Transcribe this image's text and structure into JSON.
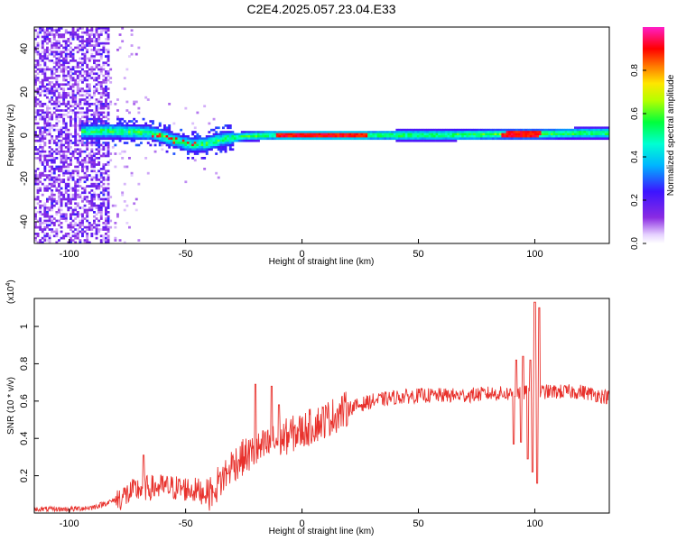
{
  "title": "C2E4.2025.057.23.04.E33",
  "colors": {
    "snr_line": "#e8312c",
    "track_core": "#ff0000",
    "scatter": "#8a2be2"
  },
  "chart_data": [
    {
      "type": "heatmap",
      "title": "C2E4.2025.057.23.04.E33",
      "xlabel": "Height of straight line (km)",
      "ylabel": "Frequency (Hz)",
      "xlim": [
        -115,
        132
      ],
      "ylim": [
        -50,
        50
      ],
      "x_ticks": [
        -100,
        -50,
        0,
        50,
        100
      ],
      "y_ticks": [
        -40,
        -20,
        0,
        20,
        40
      ],
      "colorbar": {
        "label": "Normalized spectral amplitude",
        "range": [
          0,
          1
        ],
        "ticks": [
          "0.0",
          "0.2",
          "0.4",
          "0.6",
          "0.8"
        ],
        "colormap": "rainbow (lavender-purple-blue-cyan-green-yellow-red-magenta)"
      },
      "features": {
        "tone_frequency_hz": 1,
        "tone_extent_km": [
          -95,
          132
        ],
        "tone_halfwidth_hz_near_0km": 2,
        "strong_segment_km": [
          -12,
          28
        ],
        "broadband_noise_region_km": [
          -115,
          -83
        ]
      },
      "track_center_hz": [
        [
          -95,
          2
        ],
        [
          -85,
          2.5
        ],
        [
          -75,
          2
        ],
        [
          -65,
          1.5
        ],
        [
          -60,
          0
        ],
        [
          -55,
          -2
        ],
        [
          -48,
          -4
        ],
        [
          -42,
          -3.5
        ],
        [
          -35,
          -1.5
        ],
        [
          -25,
          0
        ],
        [
          -15,
          0.5
        ],
        [
          0,
          0.5
        ],
        [
          30,
          0.5
        ],
        [
          60,
          0.5
        ],
        [
          90,
          1
        ],
        [
          100,
          1
        ],
        [
          120,
          1.5
        ],
        [
          132,
          1.5
        ]
      ]
    },
    {
      "type": "line",
      "xlabel": "Height of straight line (km)",
      "ylabel": "SNR (10 * v/v)",
      "y_multiplier": "(x10^4)",
      "y_multiplier_base": "(x10",
      "y_multiplier_exp": "4",
      "y_multiplier_close": ")",
      "xlim": [
        -115,
        132
      ],
      "ylim": [
        0,
        1.15
      ],
      "x_ticks": [
        -100,
        -50,
        0,
        50,
        100
      ],
      "y_ticks": [
        0.2,
        0.4,
        0.6,
        0.8,
        1.0
      ],
      "series": [
        {
          "values_xy": [
            [
              -115,
              0.02
            ],
            [
              -100,
              0.02
            ],
            [
              -90,
              0.03
            ],
            [
              -80,
              0.07
            ],
            [
              -70,
              0.13
            ],
            [
              -60,
              0.14
            ],
            [
              -50,
              0.13
            ],
            [
              -40,
              0.11
            ],
            [
              -35,
              0.17
            ],
            [
              -30,
              0.26
            ],
            [
              -25,
              0.3
            ],
            [
              -20,
              0.33
            ],
            [
              -15,
              0.36
            ],
            [
              -10,
              0.39
            ],
            [
              -5,
              0.42
            ],
            [
              0,
              0.44
            ],
            [
              5,
              0.47
            ],
            [
              10,
              0.5
            ],
            [
              15,
              0.53
            ],
            [
              20,
              0.56
            ],
            [
              25,
              0.58
            ],
            [
              30,
              0.6
            ],
            [
              40,
              0.62
            ],
            [
              50,
              0.63
            ],
            [
              60,
              0.63
            ],
            [
              70,
              0.63
            ],
            [
              80,
              0.64
            ],
            [
              90,
              0.64
            ],
            [
              100,
              0.65
            ],
            [
              110,
              0.65
            ],
            [
              120,
              0.65
            ],
            [
              132,
              0.62
            ]
          ],
          "peaks_xy": [
            [
              -68,
              0.31
            ],
            [
              -38,
              0.11
            ],
            [
              -32,
              0.21
            ],
            [
              -20,
              0.69
            ],
            [
              -13,
              0.68
            ],
            [
              -10,
              0.58
            ],
            [
              92,
              0.82
            ],
            [
              95,
              0.84
            ],
            [
              98,
              0.82
            ],
            [
              100,
              1.13
            ],
            [
              102,
              1.1
            ]
          ],
          "dips_xy": [
            [
              91,
              0.37
            ],
            [
              94,
              0.38
            ],
            [
              97,
              0.29
            ],
            [
              99,
              0.22
            ],
            [
              101,
              0.16
            ]
          ]
        }
      ]
    }
  ]
}
